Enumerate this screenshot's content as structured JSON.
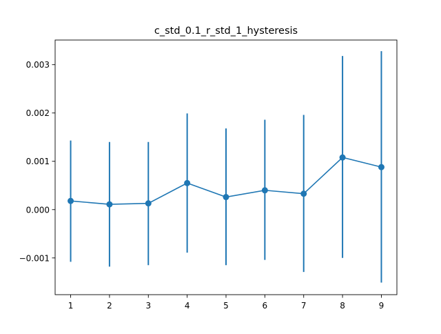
{
  "chart_data": {
    "type": "line",
    "title": "c_std_0.1_r_std_1_hysteresis",
    "xlabel": "",
    "ylabel": "",
    "x": [
      1,
      2,
      3,
      4,
      5,
      6,
      7,
      8,
      9
    ],
    "series": [
      {
        "values": [
          0.00018,
          0.00011,
          0.00013,
          0.00055,
          0.00026,
          0.0004,
          0.00033,
          0.00108,
          0.00088
        ],
        "err_low": [
          -0.00108,
          -0.00118,
          -0.00115,
          -0.00089,
          -0.00115,
          -0.00104,
          -0.00129,
          -0.001,
          -0.00151
        ],
        "err_high": [
          0.00143,
          0.0014,
          0.0014,
          0.00199,
          0.00168,
          0.00186,
          0.00196,
          0.00318,
          0.00328
        ],
        "color": "#1f77b4"
      }
    ],
    "x_ticks": [
      "1",
      "2",
      "3",
      "4",
      "5",
      "6",
      "7",
      "8",
      "9"
    ],
    "y_ticks": [
      -0.001,
      0.0,
      0.001,
      0.002,
      0.003
    ],
    "y_tick_labels": [
      "−0.001",
      "0.000",
      "0.001",
      "0.002",
      "0.003"
    ],
    "xlim": [
      0.6,
      9.4
    ],
    "ylim": [
      -0.00176,
      0.00351
    ],
    "grid": false,
    "legend": "none"
  }
}
